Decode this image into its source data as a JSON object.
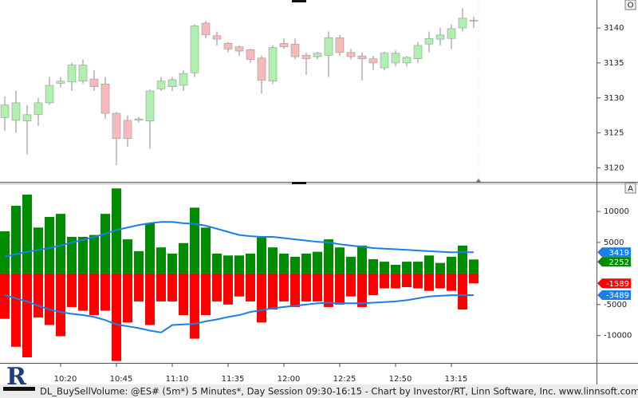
{
  "chart_data": [
    {
      "type": "candlestick",
      "categories": [
        null,
        null,
        null,
        null,
        null,
        "10:20",
        null,
        null,
        null,
        null,
        "10:45",
        null,
        null,
        null,
        null,
        "11:10",
        null,
        null,
        null,
        null,
        "11:35",
        null,
        null,
        null,
        null,
        "12:00",
        null,
        null,
        null,
        null,
        "12:25",
        null,
        null,
        null,
        null,
        "12:50",
        null,
        null,
        null,
        null,
        "13:15",
        null,
        null
      ],
      "open": [
        3127.2,
        3126.8,
        3126.7,
        3127.6,
        3129.3,
        3132.1,
        3132.3,
        3132.4,
        3132.7,
        3132.0,
        3127.8,
        3126.8,
        3126.8,
        3126.7,
        3131.3,
        3131.6,
        3131.8,
        3133.6,
        3140.7,
        3138.9,
        3137.8,
        3137.3,
        3136.9,
        3135.7,
        3132.4,
        3137.8,
        3137.7,
        3136.1,
        3135.9,
        3136.1,
        3138.6,
        3136.5,
        3136.0,
        3135.6,
        3134.3,
        3135.0,
        3135.0,
        3135.6,
        3137.7,
        3138.4,
        3138.5,
        3140.0,
        3141.0
      ],
      "high": [
        3130.2,
        3131.0,
        3129.0,
        3130.0,
        3133.0,
        3133.0,
        3135.0,
        3135.5,
        3134.0,
        3133.0,
        3128.0,
        3127.5,
        3127.3,
        3131.2,
        3133.0,
        3133.0,
        3134.0,
        3140.5,
        3141.0,
        3139.5,
        3138.0,
        3137.5,
        3137.0,
        3136.0,
        3137.5,
        3138.5,
        3138.5,
        3136.5,
        3136.6,
        3139.5,
        3139.0,
        3137.0,
        3136.5,
        3136.0,
        3136.6,
        3136.8,
        3136.0,
        3138.0,
        3139.5,
        3140.0,
        3140.5,
        3142.8,
        3141.6
      ],
      "low": [
        3125.3,
        3125.0,
        3121.9,
        3126.0,
        3129.0,
        3131.5,
        3131.0,
        3132.0,
        3131.0,
        3127.0,
        3120.4,
        3123.0,
        3126.5,
        3122.7,
        3131.0,
        3131.0,
        3131.0,
        3133.0,
        3138.5,
        3137.5,
        3136.5,
        3136.0,
        3135.0,
        3130.6,
        3132.0,
        3137.0,
        3135.5,
        3133.3,
        3135.5,
        3133.0,
        3136.0,
        3135.5,
        3132.5,
        3134.0,
        3134.0,
        3134.5,
        3134.5,
        3135.0,
        3136.5,
        3137.5,
        3137.0,
        3139.5,
        3140.0
      ],
      "close": [
        3129.0,
        3129.3,
        3127.6,
        3129.3,
        3131.8,
        3132.4,
        3134.7,
        3134.7,
        3131.6,
        3127.8,
        3124.2,
        3124.2,
        3127.0,
        3131.0,
        3132.4,
        3132.6,
        3133.5,
        3140.3,
        3139.0,
        3138.4,
        3137.0,
        3136.7,
        3135.5,
        3132.5,
        3137.2,
        3137.3,
        3135.9,
        3135.6,
        3136.4,
        3138.6,
        3136.5,
        3135.9,
        3135.6,
        3135.0,
        3136.4,
        3136.4,
        3135.8,
        3137.5,
        3138.5,
        3139.0,
        3139.9,
        3141.4,
        3141.1
      ],
      "up_color": "#aef0ae",
      "down_color": "#f7b9b9",
      "ylim": [
        3118,
        3144
      ],
      "yticks": [
        3120,
        3125,
        3130,
        3135,
        3140
      ]
    },
    {
      "type": "bar",
      "series": [
        {
          "color": "#008c00",
          "values": [
            6800,
            10900,
            12700,
            7400,
            9100,
            9600,
            5900,
            5900,
            6200,
            9600,
            13700,
            5500,
            3600,
            8100,
            4200,
            3200,
            4900,
            10600,
            7400,
            3200,
            2900,
            2900,
            3200,
            5800,
            4200,
            3200,
            2700,
            3200,
            3500,
            5500,
            4200,
            2700,
            4500,
            2300,
            1900,
            1400,
            1900,
            1900,
            2900,
            1700,
            2700,
            4500,
            2252
          ]
        },
        {
          "color": "#ff0000",
          "values": [
            -7300,
            -11800,
            -13500,
            -7100,
            -8300,
            -10100,
            -5400,
            -6000,
            -6700,
            -6000,
            -14100,
            -7900,
            -4500,
            -8300,
            -4500,
            -4500,
            -6700,
            -10500,
            -6700,
            -4500,
            -5000,
            -3700,
            -4500,
            -7900,
            -5800,
            -4500,
            -5400,
            -4500,
            -4500,
            -5400,
            -5000,
            -3700,
            -5400,
            -3500,
            -2400,
            -2400,
            -2200,
            -2400,
            -2800,
            -2400,
            -2800,
            -5800,
            -1589
          ]
        },
        {
          "type": "line",
          "color": "#1a7fe6",
          "values": [
            2700,
            3100,
            3500,
            3800,
            4100,
            4500,
            5000,
            5400,
            5900,
            6400,
            7000,
            7400,
            7800,
            8100,
            8300,
            8300,
            8100,
            8000,
            7700,
            7200,
            6700,
            6200,
            6000,
            5900,
            5900,
            5700,
            5500,
            5300,
            5100,
            5000,
            4700,
            4500,
            4300,
            4100,
            4000,
            3900,
            3800,
            3700,
            3600,
            3500,
            3400,
            3450,
            3419
          ]
        },
        {
          "type": "line",
          "color": "#1a7fe6",
          "values": [
            -3500,
            -4000,
            -4500,
            -5200,
            -5800,
            -6200,
            -6500,
            -6700,
            -7000,
            -7500,
            -8200,
            -8500,
            -8800,
            -9200,
            -9500,
            -8300,
            -8200,
            -8100,
            -7700,
            -7400,
            -7000,
            -6700,
            -6200,
            -5900,
            -5600,
            -5400,
            -5200,
            -5000,
            -4800,
            -4700,
            -4800,
            -4800,
            -4800,
            -4700,
            -4600,
            -4500,
            -4300,
            -4000,
            -3700,
            -3600,
            -3500,
            -3500,
            -3489
          ]
        }
      ],
      "ylim": [
        -14400,
        14500
      ],
      "yticks": [
        -10000,
        -5000,
        5000,
        10000
      ]
    }
  ],
  "buttons": [
    "O",
    "A"
  ],
  "footer": "DL_BuySellVolume: @ES# (5m*) 5 Minutes*, Day Session 09:30-16:15 - Chart by Investor/RT, Linn Software, Inc. www.linnsoft.com"
}
